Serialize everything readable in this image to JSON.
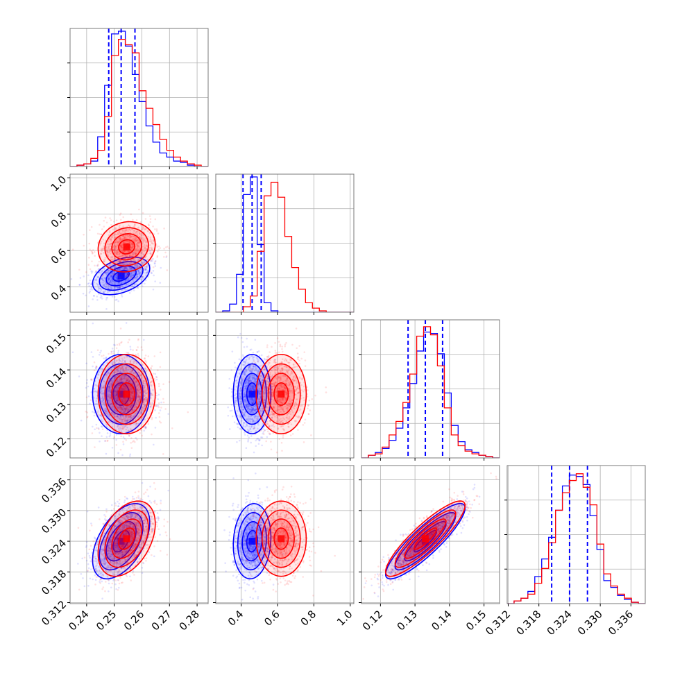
{
  "chart_data": {
    "type": "corner",
    "grid": true,
    "colors": {
      "blue": "#0000ff",
      "red": "#ff0000"
    },
    "params": [
      {
        "key": "p0",
        "range": [
          0.234,
          0.284
        ],
        "ticks": [
          "0.24",
          "0.25",
          "0.26",
          "0.27",
          "0.28"
        ],
        "tick_values": [
          0.24,
          0.25,
          0.26,
          0.27,
          0.28
        ]
      },
      {
        "key": "p1",
        "range": [
          0.26,
          1.02
        ],
        "ticks": [
          "0.4",
          "0.6",
          "0.8",
          "1.0"
        ],
        "tick_values": [
          0.4,
          0.6,
          0.8,
          1.0
        ]
      },
      {
        "key": "p2",
        "range": [
          0.1145,
          0.1545
        ],
        "ticks": [
          "0.12",
          "0.13",
          "0.14",
          "0.15"
        ],
        "tick_values": [
          0.12,
          0.13,
          0.14,
          0.15
        ]
      },
      {
        "key": "p3",
        "range": [
          0.3118,
          0.3388
        ],
        "ticks": [
          "0.312",
          "0.318",
          "0.324",
          "0.330",
          "0.336"
        ],
        "tick_values": [
          0.312,
          0.318,
          0.324,
          0.33,
          0.336
        ]
      }
    ],
    "series": [
      {
        "color": "blue",
        "mean": [
          0.2525,
          0.46,
          0.133,
          0.324
        ],
        "std": [
          0.0045,
          0.045,
          0.005,
          0.0032
        ],
        "corr": {
          "0-1": 0.4,
          "0-2": 0.0,
          "0-3": 0.5,
          "1-2": 0.0,
          "1-3": 0.1,
          "2-3": 0.88
        },
        "quantiles_dashed": [
          [
            0.248,
            0.2525,
            0.2575
          ],
          [
            0.41,
            0.46,
            0.51
          ],
          [
            0.128,
            0.133,
            0.138
          ],
          [
            0.3205,
            0.324,
            0.3275
          ]
        ],
        "hist": [
          [
            0,
            0.01,
            0.02,
            0.04,
            0.22,
            0.6,
            0.98,
            1.0,
            0.89,
            0.68,
            0.48,
            0.3,
            0.18,
            0.1,
            0.07,
            0.04,
            0.03,
            0.01,
            0.0,
            0
          ],
          [
            0,
            0.01,
            0.06,
            0.28,
            0.87,
            1.0,
            0.5,
            0.07,
            0.01,
            0,
            0,
            0,
            0,
            0,
            0,
            0,
            0,
            0,
            0,
            0
          ],
          [
            0,
            0.02,
            0.04,
            0.07,
            0.13,
            0.22,
            0.37,
            0.55,
            0.79,
            0.93,
            0.92,
            0.77,
            0.48,
            0.24,
            0.12,
            0.06,
            0.04,
            0.02,
            0.01,
            0
          ],
          [
            0,
            0.02,
            0.04,
            0.09,
            0.2,
            0.33,
            0.49,
            0.69,
            0.87,
            0.95,
            0.94,
            0.88,
            0.65,
            0.4,
            0.17,
            0.12,
            0.06,
            0.03,
            0.01,
            0
          ]
        ]
      },
      {
        "color": "red",
        "mean": [
          0.2545,
          0.62,
          0.133,
          0.3245
        ],
        "std": [
          0.0045,
          0.06,
          0.005,
          0.0032
        ],
        "corr": {
          "0-1": 0.1,
          "0-2": 0.0,
          "0-3": 0.4,
          "1-2": 0.0,
          "1-3": 0.0,
          "2-3": 0.88
        },
        "quantiles_dashed": [],
        "hist": [
          [
            0,
            0.01,
            0.02,
            0.06,
            0.12,
            0.37,
            0.82,
            0.94,
            0.9,
            0.84,
            0.56,
            0.43,
            0.31,
            0.2,
            0.12,
            0.07,
            0.04,
            0.02,
            0.01,
            0
          ],
          [
            0,
            0,
            0,
            0,
            0.04,
            0.12,
            0.45,
            0.86,
            0.96,
            0.85,
            0.56,
            0.33,
            0.17,
            0.07,
            0.03,
            0.01,
            0.0,
            0,
            0,
            0
          ],
          [
            0,
            0.02,
            0.03,
            0.08,
            0.17,
            0.27,
            0.41,
            0.62,
            0.9,
            0.97,
            0.91,
            0.68,
            0.37,
            0.17,
            0.09,
            0.05,
            0.03,
            0.02,
            0.01,
            0
          ],
          [
            0,
            0.02,
            0.04,
            0.07,
            0.15,
            0.26,
            0.45,
            0.69,
            0.82,
            0.91,
            0.96,
            0.86,
            0.73,
            0.44,
            0.22,
            0.13,
            0.07,
            0.04,
            0.01,
            0
          ]
        ]
      }
    ]
  }
}
